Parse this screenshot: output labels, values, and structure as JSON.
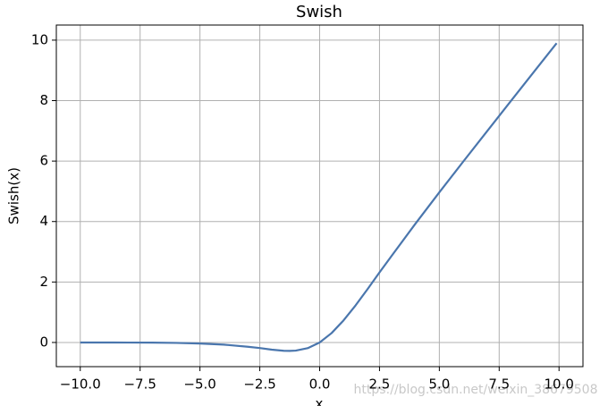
{
  "chart_data": {
    "type": "line",
    "title": "Swish",
    "x_label": "x",
    "y_label": "Swish(x)",
    "x": [
      -10,
      -9,
      -8,
      -7,
      -6,
      -5,
      -4,
      -3,
      -2.5,
      -2,
      -1.5,
      -1.25,
      -1,
      -0.5,
      0,
      0.5,
      1,
      1.5,
      2,
      2.5,
      3,
      4,
      5,
      6,
      7,
      8,
      9,
      9.9
    ],
    "series": [
      {
        "name": "Swish",
        "color": "#4a76ad",
        "values": [
          -0.0005,
          -0.001,
          -0.003,
          -0.006,
          -0.015,
          -0.034,
          -0.072,
          -0.142,
          -0.184,
          -0.238,
          -0.274,
          -0.278,
          -0.269,
          -0.189,
          0,
          0.311,
          0.731,
          1.226,
          1.762,
          2.316,
          2.858,
          3.928,
          4.967,
          5.985,
          6.994,
          7.997,
          8.999,
          9.9
        ]
      }
    ],
    "xlim": [
      -11,
      11
    ],
    "ylim": [
      -0.8,
      10.5
    ],
    "xticks": [
      {
        "value": -10,
        "label": "−10.0"
      },
      {
        "value": -7.5,
        "label": "−7.5"
      },
      {
        "value": -5,
        "label": "−5.0"
      },
      {
        "value": -2.5,
        "label": "−2.5"
      },
      {
        "value": 0,
        "label": "0.0"
      },
      2.5,
      {
        "value": 5,
        "label": "5.0"
      },
      7.5,
      {
        "value": 10,
        "label": "10.0"
      }
    ],
    "yticks": [
      0,
      2,
      4,
      6,
      8,
      10
    ],
    "grid": true,
    "watermark": "https://blog.csdn.net/weixin_38679508"
  }
}
